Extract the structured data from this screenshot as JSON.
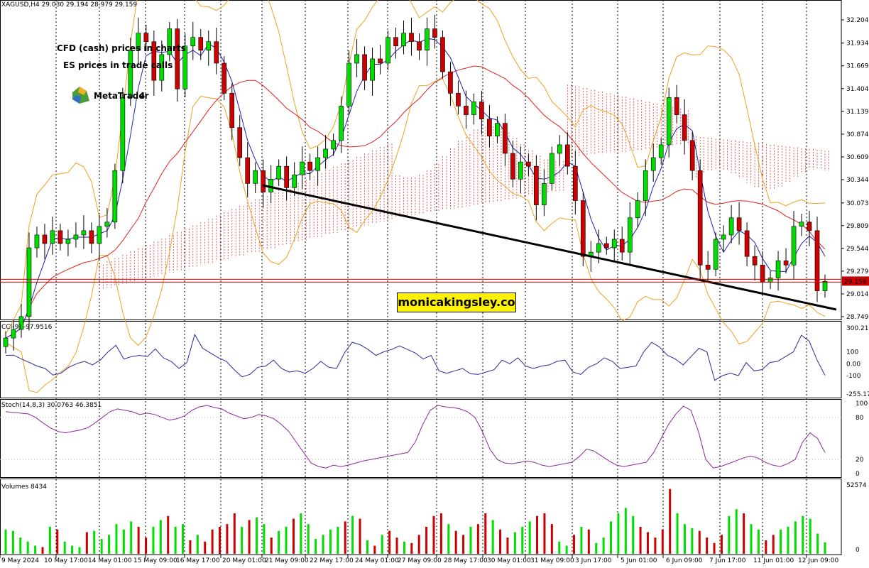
{
  "header": {
    "symbol_info": "XAGUSD,H4  29.030 29.194 28.979 29.159"
  },
  "annotations": {
    "line1": "CFD (cash) prices in charts",
    "line2": "ES prices in trade calls",
    "logo_text": "MetaTrader",
    "logo_num": "4"
  },
  "watermark": "monicakingsley.co",
  "colors": {
    "bull": "#00dd00",
    "bear": "#cc0000",
    "ma_fast": "#1f1fb0",
    "ma_slow": "#e02020",
    "bollinger": "#f0a020",
    "cloud": "#e03030",
    "cci": "#2a2a9a",
    "stoch": "#8a2a9a",
    "trendline": "#000000"
  },
  "chart_data": [
    {
      "type": "candlestick",
      "title": "XAGUSD,H4",
      "ylim": [
        28.749,
        32.204
      ],
      "y_ticks": [
        "32.204",
        "31.934",
        "31.669",
        "31.404",
        "31.139",
        "30.874",
        "30.609",
        "30.344",
        "30.073",
        "29.809",
        "29.544",
        "29.279",
        "29.014",
        "28.749"
      ],
      "price_current": "29.159",
      "closes": [
        28.5,
        28.6,
        28.75,
        29.55,
        29.7,
        29.6,
        29.75,
        29.6,
        29.65,
        29.7,
        29.75,
        29.6,
        29.8,
        29.85,
        30.45,
        31.3,
        31.85,
        32.05,
        31.95,
        31.5,
        31.8,
        32.1,
        31.4,
        31.9,
        32.0,
        31.85,
        31.95,
        31.7,
        31.35,
        30.95,
        30.6,
        30.3,
        30.45,
        30.2,
        30.35,
        30.5,
        30.25,
        30.4,
        30.55,
        30.45,
        30.6,
        30.7,
        30.8,
        31.2,
        31.7,
        31.8,
        31.5,
        31.75,
        31.7,
        32.0,
        31.9,
        32.05,
        31.95,
        31.85,
        32.1,
        32.0,
        31.6,
        31.35,
        31.2,
        31.1,
        31.25,
        31.05,
        30.85,
        31.0,
        30.65,
        30.35,
        30.55,
        30.5,
        30.05,
        30.3,
        30.65,
        30.75,
        30.5,
        30.1,
        29.45,
        29.5,
        29.6,
        29.55,
        29.65,
        29.5,
        29.9,
        30.1,
        30.45,
        30.6,
        30.75,
        31.3,
        31.1,
        30.8,
        30.45,
        29.35,
        29.3,
        29.65,
        29.7,
        29.9,
        29.75,
        29.45,
        29.35,
        29.15,
        29.2,
        29.4,
        29.35,
        29.8,
        29.85,
        29.75,
        29.05,
        29.16
      ],
      "series": [
        {
          "name": "Ichimoku cloud"
        },
        {
          "name": "Bollinger Bands"
        },
        {
          "name": "Moving averages"
        }
      ]
    },
    {
      "type": "line",
      "title": "CCI(9) -97.9516",
      "ylim": [
        -255.175,
        300.2132
      ],
      "y_ticks": [
        "300.2132",
        "100",
        "0.00",
        "-100",
        "-255.175"
      ],
      "values": [
        70,
        72,
        40,
        10,
        -20,
        -40,
        -95,
        -80,
        -30,
        0,
        20,
        -10,
        30,
        100,
        155,
        40,
        60,
        70,
        60,
        125,
        50,
        20,
        -40,
        10,
        245,
        130,
        90,
        50,
        20,
        -50,
        -110,
        -90,
        -30,
        -20,
        30,
        -40,
        -70,
        -60,
        -80,
        -40,
        20,
        -30,
        -40,
        90,
        180,
        160,
        120,
        70,
        100,
        120,
        150,
        120,
        90,
        40,
        70,
        -60,
        -80,
        -60,
        -40,
        -85,
        -90,
        -70,
        -50,
        30,
        0,
        50,
        -20,
        -40,
        -20,
        -10,
        20,
        30,
        -70,
        -90,
        -30,
        0,
        50,
        20,
        -40,
        -30,
        -20,
        100,
        180,
        140,
        70,
        40,
        -10,
        60,
        130,
        100,
        -140,
        -100,
        -80,
        -100,
        10,
        -60,
        -50,
        10,
        20,
        60,
        100,
        240,
        190,
        30,
        -98
      ]
    },
    {
      "type": "line",
      "title": "Stoch(14,8,3) 30.0763 46.3851",
      "ylim": [
        0,
        100
      ],
      "y_ticks": [
        "100",
        "80",
        "20",
        "0"
      ],
      "values": [
        88,
        87,
        86,
        85,
        80,
        72,
        65,
        60,
        58,
        60,
        62,
        65,
        72,
        80,
        88,
        92,
        90,
        88,
        84,
        86,
        84,
        80,
        76,
        78,
        82,
        90,
        95,
        97,
        94,
        92,
        86,
        82,
        78,
        80,
        84,
        82,
        78,
        70,
        60,
        45,
        30,
        15,
        10,
        8,
        12,
        10,
        12,
        15,
        18,
        20,
        22,
        24,
        26,
        28,
        30,
        45,
        70,
        90,
        97,
        95,
        94,
        92,
        88,
        80,
        60,
        35,
        20,
        15,
        14,
        16,
        18,
        16,
        12,
        10,
        12,
        14,
        16,
        24,
        35,
        32,
        25,
        18,
        12,
        10,
        12,
        14,
        16,
        30,
        50,
        70,
        85,
        96,
        90,
        60,
        20,
        8,
        10,
        14,
        18,
        22,
        25,
        22,
        16,
        12,
        10,
        14,
        20,
        45,
        58,
        50,
        30
      ]
    },
    {
      "type": "bar",
      "title": "Volumes 8434",
      "ylim": [
        0,
        52574
      ],
      "y_ticks": [
        "52574",
        "0"
      ],
      "values": [
        18000,
        17000,
        12000,
        9000,
        6000,
        5000,
        20000,
        18000,
        9000,
        6000,
        5000,
        16000,
        17000,
        11000,
        14000,
        22000,
        18000,
        24000,
        20000,
        12000,
        20000,
        25000,
        28000,
        20000,
        22000,
        10000,
        14000,
        9000,
        18000,
        20000,
        22000,
        30000,
        20000,
        25000,
        27000,
        22000,
        12000,
        17000,
        20000,
        26000,
        30000,
        22000,
        11000,
        14000,
        18000,
        20000,
        24000,
        28000,
        26000,
        10000,
        6000,
        14000,
        17000,
        12000,
        9000,
        8000,
        14000,
        20000,
        28000,
        30000,
        22000,
        17000,
        14000,
        20000,
        22000,
        30000,
        25000,
        18000,
        12000,
        16000,
        20000,
        24000,
        28000,
        30000,
        22000,
        9000,
        6000,
        14000,
        20000,
        18000,
        8000,
        12000,
        24000,
        30000,
        34000,
        28000,
        20000,
        16000,
        12000,
        18000,
        48000,
        30000,
        22000,
        19000,
        17000,
        12000,
        8000,
        14000,
        28000,
        33000,
        30000,
        22000,
        18000,
        10000,
        14000,
        18000,
        20000,
        24000,
        28000,
        26000,
        15000,
        8434
      ]
    }
  ],
  "time_axis": [
    "9 May 2024",
    "10 May 17:00",
    "14 May 01:00",
    "15 May 09:00",
    "16 May 17:00",
    "20 May 01:00",
    "21 May 09:00",
    "22 May 17:00",
    "24 May 01:00",
    "27 May 09:00",
    "28 May 17:00",
    "30 May 01:00",
    "31 May 09:00",
    "3 Jun 17:00",
    "5 Jun 01:00",
    "6 Jun 09:00",
    "7 Jun 17:00",
    "11 Jun 01:00",
    "12 Jun 09:00"
  ]
}
